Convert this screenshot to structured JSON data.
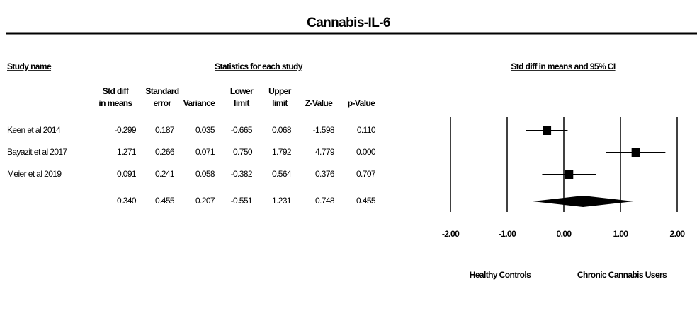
{
  "chart_data": {
    "type": "forest",
    "title": "Cannabis-IL-6",
    "study_header": "Study name",
    "statistics_header": "Statistics for each study",
    "plot_header": "Std diff in means and 95% CI",
    "categories": [
      "Keen et al 2014",
      "Bayazit et al 2017",
      "Meier et al 2019",
      null
    ],
    "columns": [
      {
        "name": [
          "Std diff",
          "in means"
        ],
        "values": [
          -0.299,
          1.271,
          0.091,
          0.34
        ],
        "value_labels": [
          "-0.299",
          "1.271",
          "0.091",
          "0.340"
        ]
      },
      {
        "name": [
          "Standard",
          "error"
        ],
        "values": [
          0.187,
          0.266,
          0.241,
          0.455
        ],
        "value_labels": [
          "0.187",
          "0.266",
          "0.241",
          "0.455"
        ]
      },
      {
        "name": [
          "Variance"
        ],
        "values": [
          0.035,
          0.071,
          0.058,
          0.207
        ],
        "value_labels": [
          "0.035",
          "0.071",
          "0.058",
          "0.207"
        ]
      },
      {
        "name": [
          "Lower",
          "limit"
        ],
        "values": [
          -0.665,
          0.75,
          -0.382,
          -0.551
        ],
        "value_labels": [
          "-0.665",
          "0.750",
          "-0.382",
          "-0.551"
        ]
      },
      {
        "name": [
          "Upper",
          "limit"
        ],
        "values": [
          0.068,
          1.792,
          0.564,
          1.231
        ],
        "value_labels": [
          "0.068",
          "1.792",
          "0.564",
          "1.231"
        ]
      },
      {
        "name": [
          "Z-Value"
        ],
        "values": [
          -1.598,
          4.779,
          0.376,
          0.748
        ],
        "value_labels": [
          "-1.598",
          "4.779",
          "0.376",
          "0.748"
        ]
      },
      {
        "name": [
          "p-Value"
        ],
        "values": [
          0.11,
          0.0,
          0.707,
          0.455
        ],
        "value_labels": [
          "0.110",
          "0.000",
          "0.707",
          "0.455"
        ]
      }
    ],
    "xlim": [
      -2,
      2
    ],
    "xticks": [
      {
        "value": -2,
        "label": "-2.00"
      },
      {
        "value": -1,
        "label": "-1.00"
      },
      {
        "value": 0,
        "label": "0.00"
      },
      {
        "value": 1,
        "label": "1.00"
      },
      {
        "value": 2,
        "label": "2.00"
      }
    ],
    "left_label": "Healthy Controls",
    "right_label": "Chronic Cannabis Users",
    "color": "#000000"
  }
}
